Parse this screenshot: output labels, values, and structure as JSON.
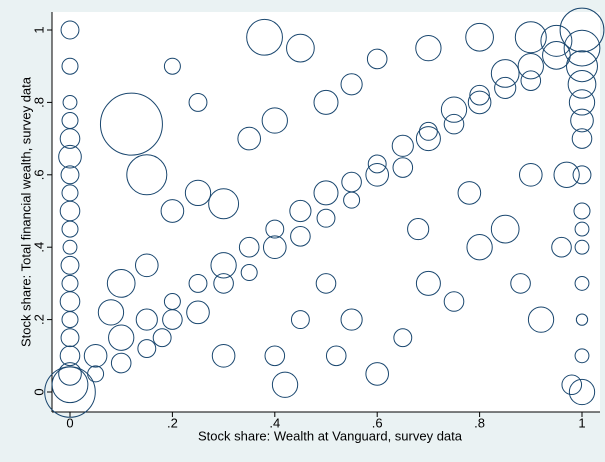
{
  "chart_data": {
    "type": "scatter",
    "color": "#1a476f",
    "x_label": "Stock share: Wealth at Vanguard, survey data",
    "y_label": "Stock share: Total financial wealth, survey data",
    "xlim": [
      0,
      1
    ],
    "ylim": [
      0,
      1
    ],
    "xticks": [
      0,
      {
        "value": 0.2,
        "label": ".2"
      },
      {
        "value": 0.4,
        "label": ".4"
      },
      {
        "value": 0.6,
        "label": ".6"
      },
      {
        "value": 0.8,
        "label": ".8"
      },
      1
    ],
    "yticks": [
      0,
      {
        "value": 0.2,
        "label": ".2"
      },
      {
        "value": 0.4,
        "label": ".4"
      },
      {
        "value": 0.6,
        "label": ".6"
      },
      {
        "value": 0.8,
        "label": ".8"
      },
      1
    ],
    "x": [
      0,
      0,
      0,
      0,
      0,
      0,
      0,
      0,
      0,
      0,
      0,
      0,
      0,
      0,
      0,
      0,
      0,
      0,
      0,
      0,
      1,
      1,
      1,
      1,
      1,
      1,
      1,
      1,
      1,
      1,
      1,
      1,
      1,
      1,
      1,
      0.98,
      0.05,
      0.05,
      0.1,
      0.1,
      0.15,
      0.15,
      0.2,
      0.2,
      0.25,
      0.25,
      0.3,
      0.3,
      0.35,
      0.35,
      0.4,
      0.4,
      0.45,
      0.45,
      0.5,
      0.5,
      0.55,
      0.55,
      0.6,
      0.6,
      0.65,
      0.65,
      0.7,
      0.7,
      0.75,
      0.75,
      0.8,
      0.8,
      0.85,
      0.85,
      0.9,
      0.9,
      0.95,
      0.95,
      0.12,
      0.15,
      0.1,
      0.2,
      0.25,
      0.3,
      0.35,
      0.4,
      0.45,
      0.5,
      0.55,
      0.6,
      0.3,
      0.4,
      0.42,
      0.52,
      0.6,
      0.55,
      0.65,
      0.7,
      0.75,
      0.8,
      0.85,
      0.9,
      0.92,
      0.88,
      0.78,
      0.68,
      0.5,
      0.45,
      0.2,
      0.25,
      0.38,
      0.7,
      0.8,
      0.9,
      0.97,
      0.96,
      0.15,
      0.18,
      0.08
    ],
    "values": [
      0,
      0.02,
      0.05,
      0.1,
      0.15,
      0.2,
      0.25,
      0.3,
      0.35,
      0.4,
      0.45,
      0.5,
      0.55,
      0.6,
      0.65,
      0.7,
      0.75,
      0.8,
      0.9,
      1,
      1,
      0.95,
      0.9,
      0.85,
      0.8,
      0.75,
      0.7,
      0.6,
      0.5,
      0.45,
      0.4,
      0.3,
      0.2,
      0.1,
      0,
      0.02,
      0.05,
      0.1,
      0.08,
      0.15,
      0.12,
      0.2,
      0.2,
      0.25,
      0.22,
      0.3,
      0.3,
      0.35,
      0.33,
      0.4,
      0.4,
      0.45,
      0.43,
      0.5,
      0.48,
      0.55,
      0.53,
      0.58,
      0.6,
      0.63,
      0.62,
      0.68,
      0.7,
      0.72,
      0.74,
      0.78,
      0.8,
      0.82,
      0.84,
      0.88,
      0.9,
      0.86,
      0.93,
      0.97,
      0.74,
      0.6,
      0.3,
      0.5,
      0.55,
      0.52,
      0.7,
      0.75,
      0.95,
      0.8,
      0.85,
      0.92,
      0.1,
      0.1,
      0.02,
      0.1,
      0.05,
      0.2,
      0.15,
      0.3,
      0.25,
      0.4,
      0.45,
      0.6,
      0.2,
      0.3,
      0.55,
      0.45,
      0.3,
      0.2,
      0.9,
      0.8,
      0.98,
      0.95,
      0.98,
      0.98,
      0.6,
      0.4,
      0.35,
      0.15,
      0.22
    ],
    "sizes": [
      40,
      20,
      8,
      6,
      5,
      4,
      6,
      4,
      5,
      3,
      4,
      6,
      4,
      5,
      8,
      6,
      4,
      3,
      4,
      5,
      30,
      20,
      15,
      12,
      10,
      8,
      6,
      5,
      4,
      3,
      3,
      3,
      2,
      3,
      10,
      6,
      4,
      8,
      6,
      10,
      5,
      7,
      6,
      4,
      8,
      5,
      6,
      10,
      4,
      6,
      8,
      5,
      6,
      7,
      5,
      9,
      4,
      6,
      8,
      5,
      6,
      7,
      9,
      5,
      6,
      10,
      8,
      6,
      7,
      12,
      10,
      6,
      12,
      15,
      60,
      25,
      12,
      8,
      10,
      14,
      8,
      10,
      12,
      9,
      7,
      6,
      8,
      6,
      10,
      6,
      8,
      7,
      5,
      9,
      6,
      10,
      12,
      8,
      10,
      6,
      8,
      7,
      6,
      5,
      4,
      5,
      20,
      10,
      12,
      15,
      10,
      6,
      8,
      5,
      10
    ]
  }
}
